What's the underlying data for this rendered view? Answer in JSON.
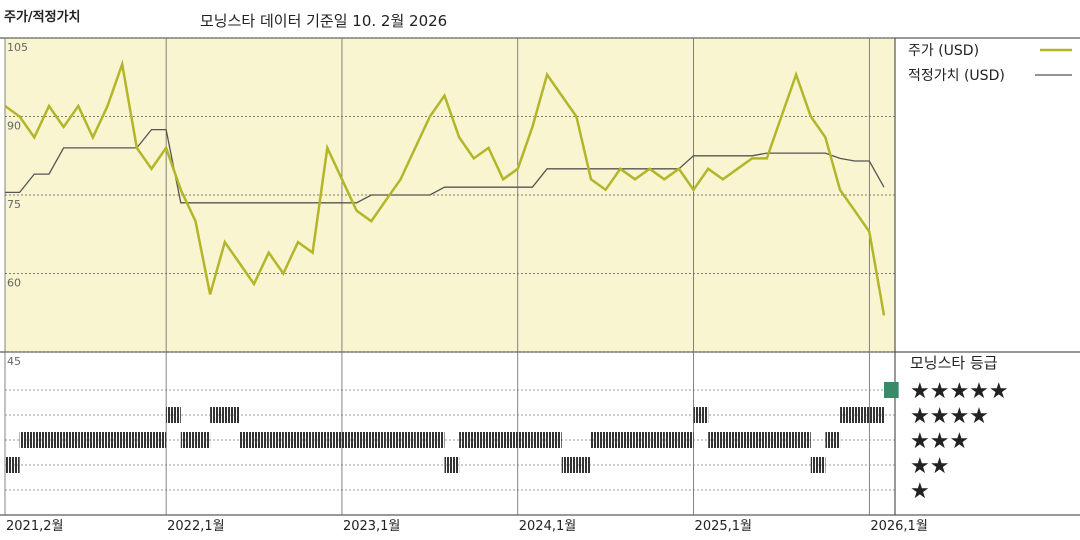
{
  "chart_data": {
    "type": "line",
    "title": "주가/적정가치",
    "subtitle": "모닝스타 데이터 기준일 10. 2월 2026",
    "x": [
      "2021-02",
      "2021-03",
      "2021-04",
      "2021-05",
      "2021-06",
      "2021-07",
      "2021-08",
      "2021-09",
      "2021-10",
      "2021-11",
      "2021-12",
      "2022-01",
      "2022-02",
      "2022-03",
      "2022-04",
      "2022-05",
      "2022-06",
      "2022-07",
      "2022-08",
      "2022-09",
      "2022-10",
      "2022-11",
      "2022-12",
      "2023-01",
      "2023-02",
      "2023-03",
      "2023-04",
      "2023-05",
      "2023-06",
      "2023-07",
      "2023-08",
      "2023-09",
      "2023-10",
      "2023-11",
      "2023-12",
      "2024-01",
      "2024-02",
      "2024-03",
      "2024-04",
      "2024-05",
      "2024-06",
      "2024-07",
      "2024-08",
      "2024-09",
      "2024-10",
      "2024-11",
      "2024-12",
      "2025-01",
      "2025-02",
      "2025-03",
      "2025-04",
      "2025-05",
      "2025-06",
      "2025-07",
      "2025-08",
      "2025-09",
      "2025-10",
      "2025-11",
      "2025-12",
      "2026-01",
      "2026-02"
    ],
    "series": [
      {
        "name": "주가 (USD)",
        "color": "#b3b62a",
        "values": [
          92,
          90,
          86,
          92,
          88,
          92,
          86,
          92,
          100,
          84,
          80,
          84,
          76,
          70,
          56,
          66,
          62,
          58,
          64,
          60,
          66,
          64,
          84,
          78,
          72,
          70,
          74,
          78,
          84,
          90,
          94,
          86,
          82,
          84,
          78,
          80,
          88,
          98,
          94,
          90,
          78,
          76,
          80,
          78,
          80,
          78,
          80,
          76,
          80,
          78,
          80,
          82,
          82,
          90,
          98,
          90,
          86,
          76,
          72,
          68,
          52
        ]
      },
      {
        "name": "적정가치 (USD)",
        "color": "#555555",
        "values": [
          75.5,
          75.5,
          79,
          79,
          84,
          84,
          84,
          84,
          84,
          84,
          87.5,
          87.5,
          73.5,
          73.5,
          73.5,
          73.5,
          73.5,
          73.5,
          73.5,
          73.5,
          73.5,
          73.5,
          73.5,
          73.5,
          73.5,
          75,
          75,
          75,
          75,
          75,
          76.5,
          76.5,
          76.5,
          76.5,
          76.5,
          76.5,
          76.5,
          80,
          80,
          80,
          80,
          80,
          80,
          80,
          80,
          80,
          80,
          82.5,
          82.5,
          82.5,
          82.5,
          82.5,
          83,
          83,
          83,
          83,
          83,
          82,
          81.5,
          81.5,
          76.5
        ]
      }
    ],
    "xlim": [
      "2021-02",
      "2026-02"
    ],
    "xticks": [
      {
        "value": "2021-02",
        "label": "2021,2월"
      },
      {
        "value": "2022-01",
        "label": "2022,1월"
      },
      {
        "value": "2023-01",
        "label": "2023,1월"
      },
      {
        "value": "2024-01",
        "label": "2024,1월"
      },
      {
        "value": "2025-01",
        "label": "2025,1월"
      },
      {
        "value": "2026-01",
        "label": "2026,1월"
      }
    ],
    "ylim": [
      45,
      105
    ],
    "yticks": [
      45,
      60,
      75,
      90,
      105
    ],
    "grid": true,
    "ratings": {
      "name": "모닝스타 등급",
      "color": "#333333",
      "values": [
        2,
        3,
        3,
        3,
        3,
        3,
        3,
        3,
        3,
        3,
        3,
        4,
        3,
        3,
        4,
        4,
        3,
        3,
        3,
        3,
        3,
        3,
        3,
        3,
        3,
        3,
        3,
        3,
        3,
        3,
        2,
        3,
        3,
        3,
        3,
        3,
        3,
        3,
        2,
        2,
        3,
        3,
        3,
        3,
        3,
        3,
        3,
        4,
        3,
        3,
        3,
        3,
        3,
        3,
        3,
        2,
        3,
        4,
        4,
        4,
        5
      ],
      "ticks": [
        {
          "value": 5,
          "label": "★★★★★"
        },
        {
          "value": 4,
          "label": "★★★★"
        },
        {
          "value": 3,
          "label": "★★★"
        },
        {
          "value": 2,
          "label": "★★"
        },
        {
          "value": 1,
          "label": "★"
        }
      ]
    }
  }
}
